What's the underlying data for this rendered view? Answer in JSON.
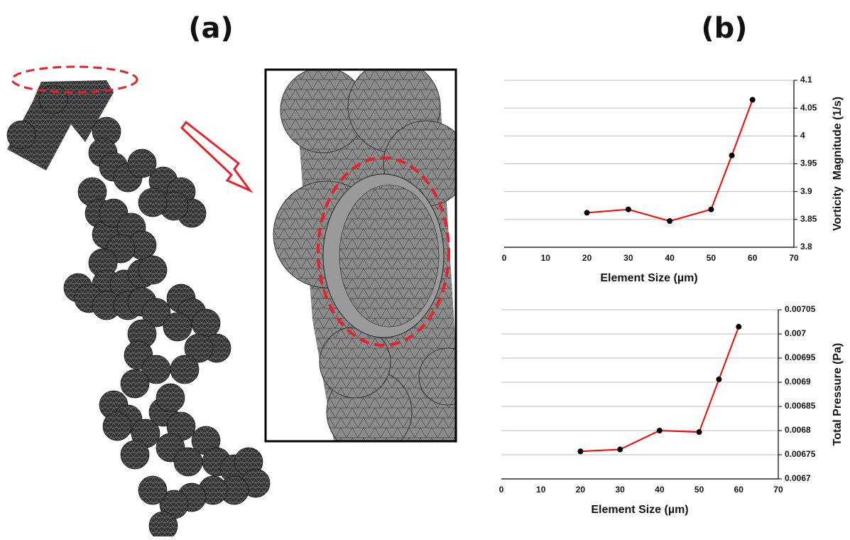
{
  "panel_labels": [
    "(a)",
    "(b)"
  ],
  "chart_data": [
    {
      "type": "line",
      "x_label": "Element Size (µm)",
      "y_label": "Vorticity  Magnitude (1/s)",
      "x": [
        20,
        30,
        40,
        50,
        55,
        60
      ],
      "series": [
        {
          "color": "#ff0000",
          "values": [
            3.862,
            3.868,
            3.847,
            3.868,
            3.965,
            4.065
          ]
        }
      ],
      "xlim": [
        0,
        70
      ],
      "xticks": [
        0,
        10,
        20,
        30,
        40,
        50,
        60,
        70
      ],
      "ylim": [
        3.8,
        4.1
      ],
      "yticks": [
        3.8,
        3.85,
        3.9,
        3.95,
        4,
        4.05,
        4.1
      ],
      "grid": true
    },
    {
      "type": "line",
      "x_label": "Element Size (µm)",
      "y_label": "Total Pressure (Pa)",
      "x": [
        20,
        30,
        40,
        50,
        55,
        60
      ],
      "series": [
        {
          "color": "#ff0000",
          "values": [
            0.006757,
            0.006761,
            0.0068,
            0.006797,
            0.006906,
            0.007015
          ]
        }
      ],
      "xlim": [
        0,
        70
      ],
      "xticks": [
        0,
        10,
        20,
        30,
        40,
        50,
        60,
        70
      ],
      "ylim": [
        0.0067,
        0.00705
      ],
      "yticks": [
        0.0067,
        0.00675,
        0.0068,
        0.00685,
        0.0069,
        0.00695,
        0.007,
        0.00705
      ],
      "grid": true
    }
  ]
}
